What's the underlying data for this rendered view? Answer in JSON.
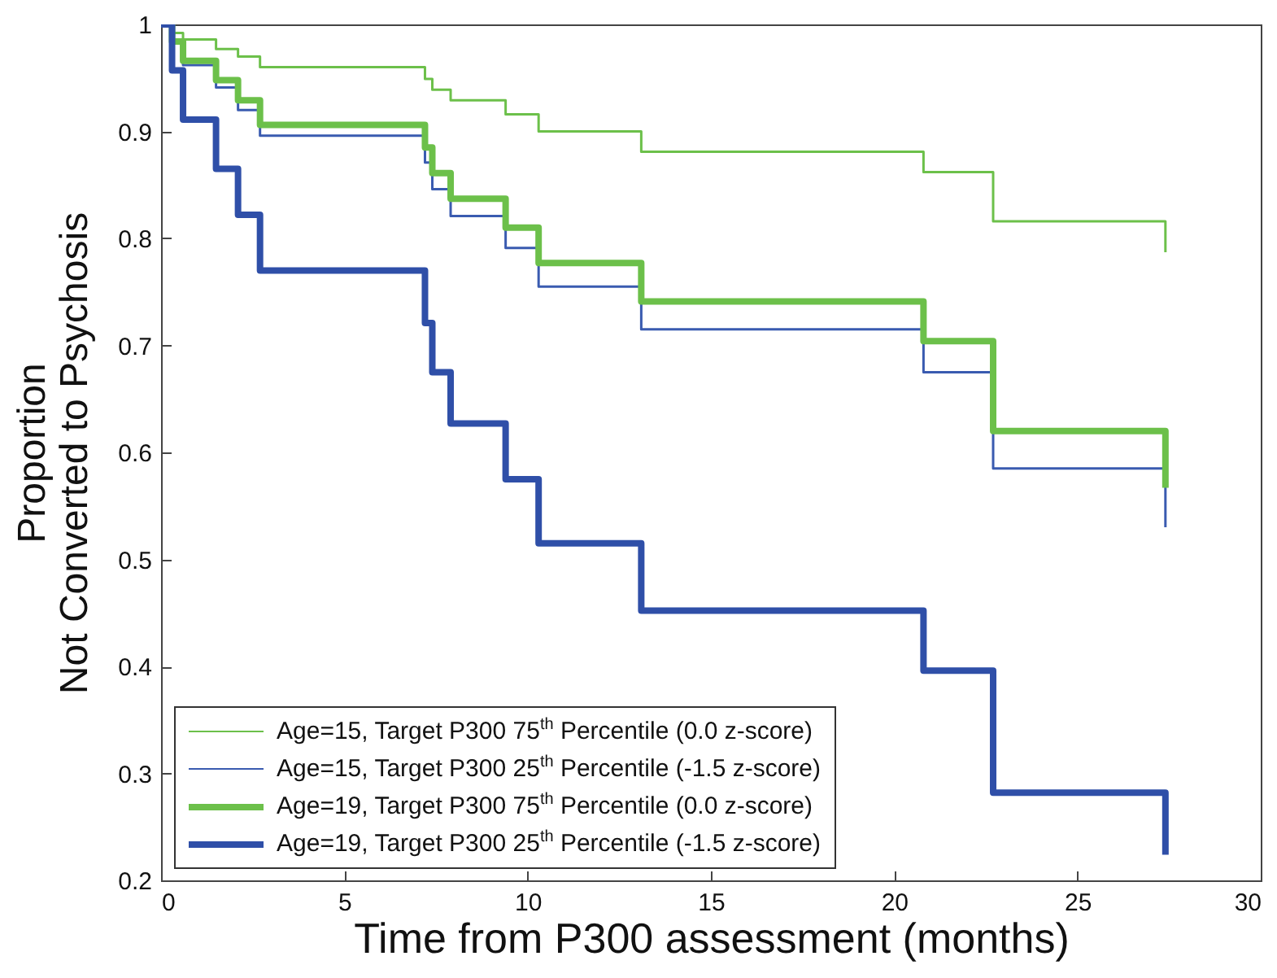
{
  "chart_data": {
    "type": "step",
    "xlabel": "Time from P300 assessment (months)",
    "ylabel": "Proportion\nNot Converted to Psychosis",
    "xlim": [
      0,
      30
    ],
    "xticks": [
      0,
      5,
      10,
      15,
      20,
      25,
      30
    ],
    "ylim": [
      0.2,
      1
    ],
    "yticks": [
      0.2,
      0.3,
      0.4,
      0.5,
      0.6,
      0.7,
      0.8,
      0.9,
      1
    ],
    "grid": false,
    "legend": "bottom left",
    "series": [
      {
        "name": "Age=15, Target P300 75$^{th}$ Percentile (0.0 z-score)",
        "color": "#6cc04a",
        "x": [
          0,
          0.3,
          0.6,
          1.5,
          2.1,
          2.7,
          7.2,
          7.4,
          7.9,
          9.4,
          10.3,
          13.1,
          20.8,
          22.7,
          27.4
        ],
        "values": [
          1,
          0.992,
          0.986,
          0.977,
          0.97,
          0.96,
          0.949,
          0.939,
          0.929,
          0.916,
          0.9,
          0.881,
          0.862,
          0.816,
          0.787
        ]
      },
      {
        "name": "Age=15, Target P300 25$^{th}$ Percentile (-1.5 z-score)",
        "color": "#3a5bb0",
        "x": [
          0,
          0.3,
          0.6,
          1.5,
          2.1,
          2.7,
          7.2,
          7.4,
          7.9,
          9.4,
          10.3,
          13.1,
          20.8,
          22.7,
          27.4
        ],
        "values": [
          1,
          0.983,
          0.962,
          0.941,
          0.92,
          0.896,
          0.871,
          0.846,
          0.821,
          0.791,
          0.755,
          0.715,
          0.675,
          0.585,
          0.53
        ]
      },
      {
        "name": "Age=19, Target P300 75$^{th}$ Percentile (0.0 z-score)",
        "color": "#6cc04a",
        "x": [
          0,
          0.3,
          0.6,
          1.5,
          2.1,
          2.7,
          7.2,
          7.4,
          7.9,
          9.4,
          10.3,
          13.1,
          20.8,
          22.7,
          27.4
        ],
        "values": [
          1,
          0.984,
          0.966,
          0.948,
          0.929,
          0.906,
          0.885,
          0.861,
          0.837,
          0.81,
          0.777,
          0.741,
          0.704,
          0.62,
          0.567
        ]
      },
      {
        "name": "Age=19, Target P300 25$^{th}$ Percentile (-1.5 z-score)",
        "color": "#2f4fa8",
        "x": [
          0,
          0.3,
          0.6,
          1.5,
          2.1,
          2.7,
          7.2,
          7.4,
          7.9,
          9.4,
          10.3,
          13.1,
          20.8,
          22.7,
          27.4
        ],
        "values": [
          1,
          0.957,
          0.911,
          0.865,
          0.822,
          0.77,
          0.721,
          0.675,
          0.627,
          0.575,
          0.515,
          0.452,
          0.396,
          0.282,
          0.224
        ]
      }
    ]
  }
}
